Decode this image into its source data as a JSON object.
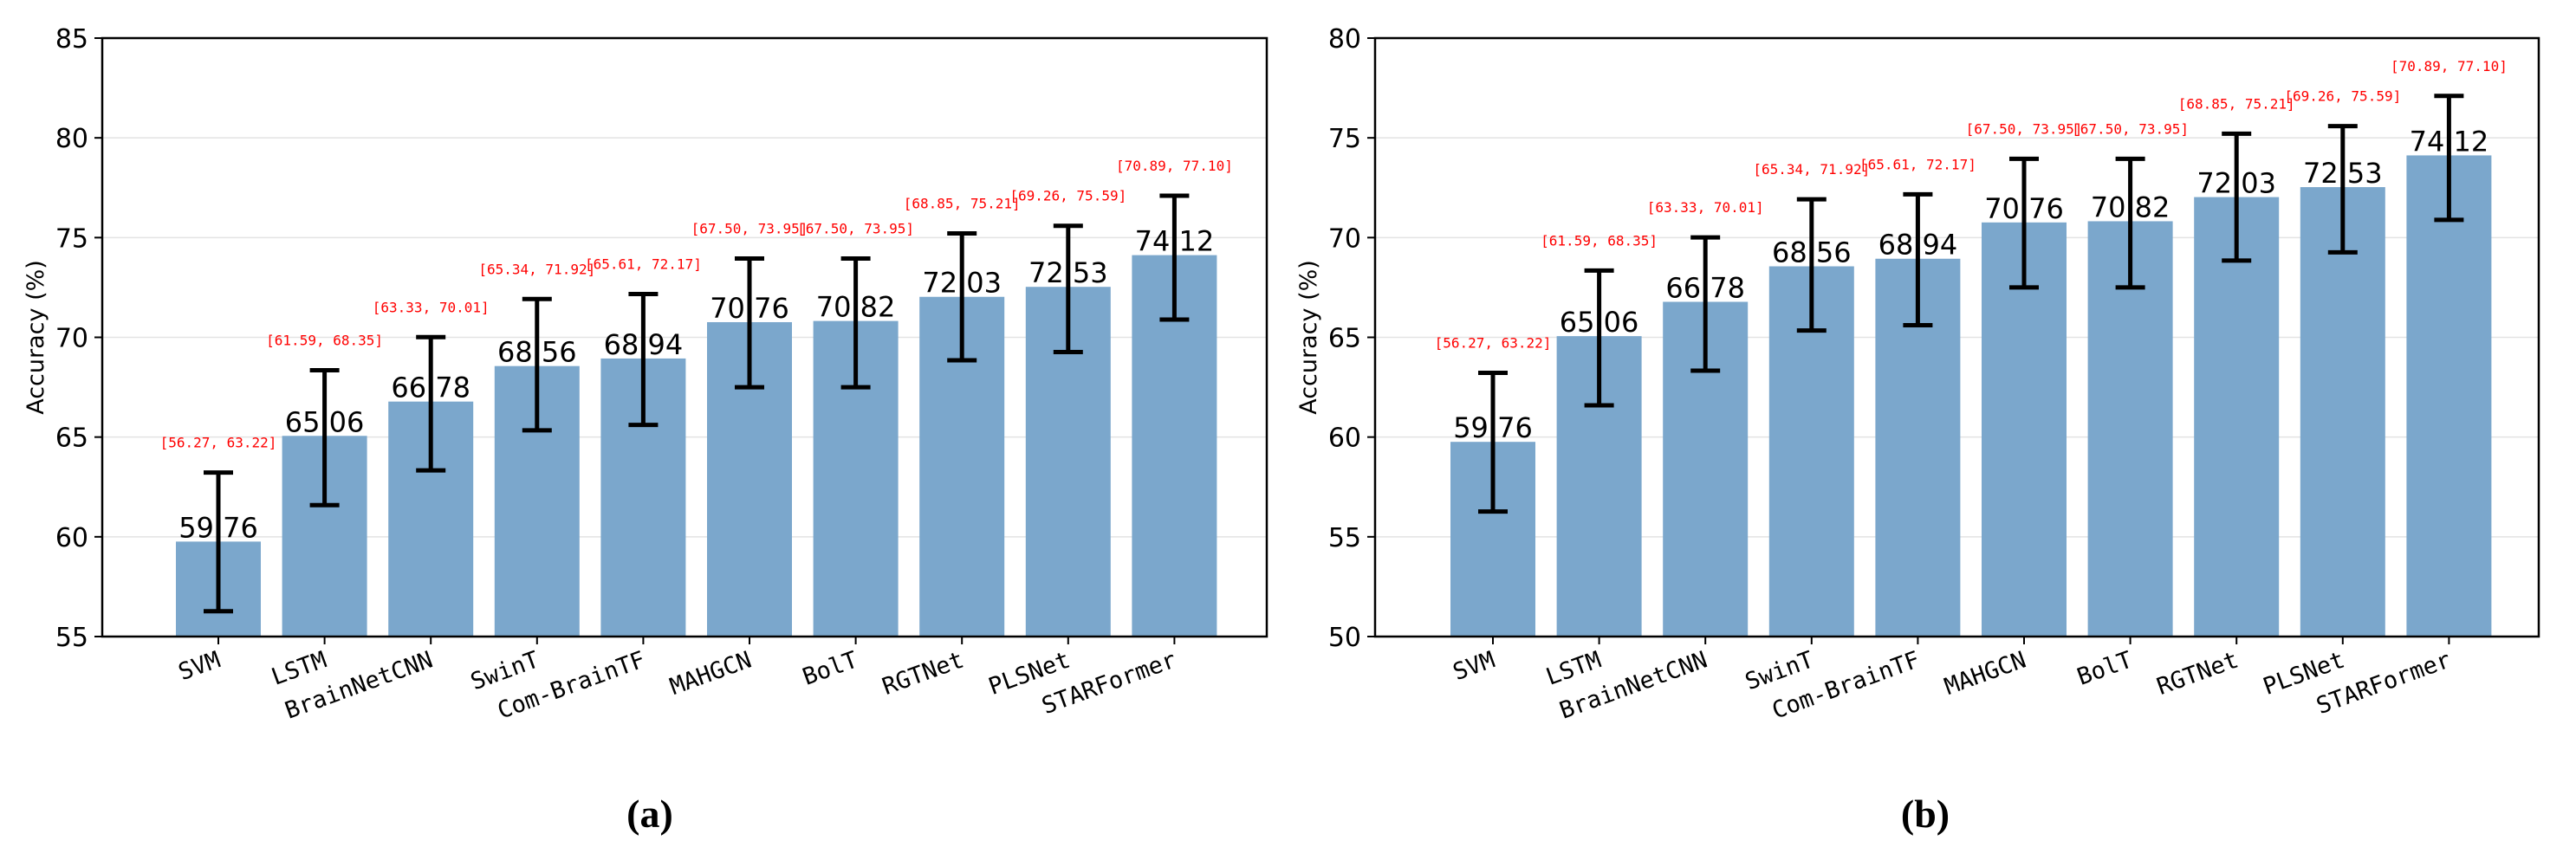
{
  "colors": {
    "bar": "#7ba7cc",
    "error": "#000000",
    "ci_text": "#ff0000",
    "grid": "#e3e3e3"
  },
  "chart_data": [
    {
      "type": "bar",
      "caption": "(a)",
      "ylabel": "Accuracy (%)",
      "xlabel": "",
      "ylim": [
        55,
        85
      ],
      "yticks": [
        55,
        60,
        65,
        70,
        75,
        80,
        85
      ],
      "grid": true,
      "categories": [
        "SVM",
        "LSTM",
        "BrainNetCNN",
        "SwinT",
        "Com-BrainTF",
        "MAHGCN",
        "BolT",
        "RGTNet",
        "PLSNet",
        "STARFormer"
      ],
      "values": [
        59.76,
        65.06,
        66.78,
        68.56,
        68.94,
        70.76,
        70.82,
        72.03,
        72.53,
        74.12
      ],
      "value_labels": [
        "59.76",
        "65.06",
        "66.78",
        "68.56",
        "68.94",
        "70.76",
        "70.82",
        "72.03",
        "72.53",
        "74.12"
      ],
      "ci_low": [
        56.27,
        61.59,
        63.33,
        65.34,
        65.61,
        67.5,
        67.5,
        68.85,
        69.26,
        70.89
      ],
      "ci_high": [
        63.22,
        68.35,
        70.01,
        71.92,
        72.17,
        73.95,
        73.95,
        75.21,
        75.59,
        77.1
      ],
      "ci_labels": [
        "[56.27, 63.22]",
        "[61.59, 68.35]",
        "[63.33, 70.01]",
        "[65.34, 71.92]",
        "[65.61, 72.17]",
        "[67.50, 73.95]",
        "[67.50, 73.95]",
        "[68.85, 75.21]",
        "[69.26, 75.59]",
        "[70.89, 77.10]"
      ]
    },
    {
      "type": "bar",
      "caption": "(b)",
      "ylabel": "Accuracy (%)",
      "xlabel": "",
      "ylim": [
        50,
        80
      ],
      "yticks": [
        50,
        55,
        60,
        65,
        70,
        75,
        80
      ],
      "grid": true,
      "categories": [
        "SVM",
        "LSTM",
        "BrainNetCNN",
        "SwinT",
        "Com-BrainTF",
        "MAHGCN",
        "BolT",
        "RGTNet",
        "PLSNet",
        "STARFormer"
      ],
      "values": [
        59.76,
        65.06,
        66.78,
        68.56,
        68.94,
        70.76,
        70.82,
        72.03,
        72.53,
        74.12
      ],
      "value_labels": [
        "59.76",
        "65.06",
        "66.78",
        "68.56",
        "68.94",
        "70.76",
        "70.82",
        "72.03",
        "72.53",
        "74.12"
      ],
      "ci_low": [
        56.27,
        61.59,
        63.33,
        65.34,
        65.61,
        67.5,
        67.5,
        68.85,
        69.26,
        70.89
      ],
      "ci_high": [
        63.22,
        68.35,
        70.01,
        71.92,
        72.17,
        73.95,
        73.95,
        75.21,
        75.59,
        77.1
      ],
      "ci_labels": [
        "[56.27, 63.22]",
        "[61.59, 68.35]",
        "[63.33, 70.01]",
        "[65.34, 71.92]",
        "[65.61, 72.17]",
        "[67.50, 73.95]",
        "[67.50, 73.95]",
        "[68.85, 75.21]",
        "[69.26, 75.59]",
        "[70.89, 77.10]"
      ]
    }
  ]
}
